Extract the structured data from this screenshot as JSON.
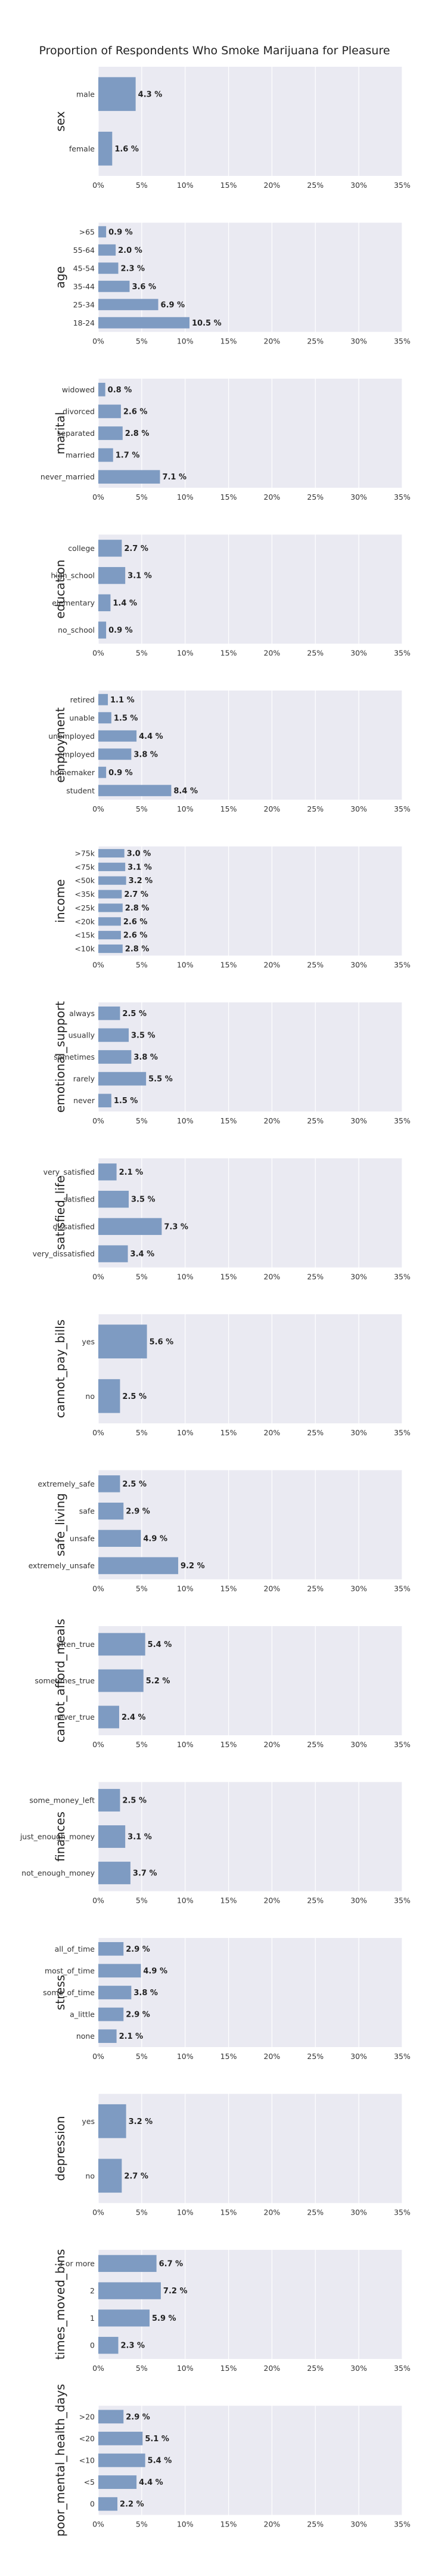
{
  "title": "Proportion of Respondents Who Smoke Marijuana for Pleasure",
  "chart_data": [
    {
      "type": "bar",
      "ylabel": "sex",
      "categories": [
        "male",
        "female"
      ],
      "values": [
        4.3,
        1.6
      ],
      "value_suffix": " %",
      "xlim": [
        0,
        35
      ],
      "xticks": [
        "0%",
        "5%",
        "10%",
        "15%",
        "20%",
        "25%",
        "30%",
        "35%"
      ]
    },
    {
      "type": "bar",
      "ylabel": "age",
      "categories": [
        ">65",
        "55-64",
        "45-54",
        "35-44",
        "25-34",
        "18-24"
      ],
      "values": [
        0.9,
        2.0,
        2.3,
        3.6,
        6.9,
        10.5
      ],
      "value_suffix": " %",
      "xlim": [
        0,
        35
      ],
      "xticks": [
        "0%",
        "5%",
        "10%",
        "15%",
        "20%",
        "25%",
        "30%",
        "35%"
      ]
    },
    {
      "type": "bar",
      "ylabel": "marital",
      "categories": [
        "widowed",
        "divorced",
        "separated",
        "married",
        "never_married"
      ],
      "values": [
        0.8,
        2.6,
        2.8,
        1.7,
        7.1
      ],
      "value_suffix": " %",
      "xlim": [
        0,
        35
      ],
      "xticks": [
        "0%",
        "5%",
        "10%",
        "15%",
        "20%",
        "25%",
        "30%",
        "35%"
      ]
    },
    {
      "type": "bar",
      "ylabel": "education",
      "categories": [
        "college",
        "high_school",
        "elementary",
        "no_school"
      ],
      "values": [
        2.7,
        3.1,
        1.4,
        0.9
      ],
      "value_suffix": " %",
      "xlim": [
        0,
        35
      ],
      "xticks": [
        "0%",
        "5%",
        "10%",
        "15%",
        "20%",
        "25%",
        "30%",
        "35%"
      ]
    },
    {
      "type": "bar",
      "ylabel": "employment",
      "categories": [
        "retired",
        "unable",
        "unemployed",
        "employed",
        "homemaker",
        "student"
      ],
      "values": [
        1.1,
        1.5,
        4.4,
        3.8,
        0.9,
        8.4
      ],
      "value_suffix": " %",
      "xlim": [
        0,
        35
      ],
      "xticks": [
        "0%",
        "5%",
        "10%",
        "15%",
        "20%",
        "25%",
        "30%",
        "35%"
      ]
    },
    {
      "type": "bar",
      "ylabel": "income",
      "categories": [
        ">75k",
        "<75k",
        "<50k",
        "<35k",
        "<25k",
        "<20k",
        "<15k",
        "<10k"
      ],
      "values": [
        3.0,
        3.1,
        3.2,
        2.7,
        2.8,
        2.6,
        2.6,
        2.8
      ],
      "value_suffix": " %",
      "xlim": [
        0,
        35
      ],
      "xticks": [
        "0%",
        "5%",
        "10%",
        "15%",
        "20%",
        "25%",
        "30%",
        "35%"
      ]
    },
    {
      "type": "bar",
      "ylabel": "emotional_support",
      "categories": [
        "always",
        "usually",
        "sometimes",
        "rarely",
        "never"
      ],
      "values": [
        2.5,
        3.5,
        3.8,
        5.5,
        1.5
      ],
      "value_suffix": " %",
      "xlim": [
        0,
        35
      ],
      "xticks": [
        "0%",
        "5%",
        "10%",
        "15%",
        "20%",
        "25%",
        "30%",
        "35%"
      ]
    },
    {
      "type": "bar",
      "ylabel": "satisfied_life",
      "categories": [
        "very_satisfied",
        "satisfied",
        "dissatisfied",
        "very_dissatisfied"
      ],
      "values": [
        2.1,
        3.5,
        7.3,
        3.4
      ],
      "value_suffix": " %",
      "xlim": [
        0,
        35
      ],
      "xticks": [
        "0%",
        "5%",
        "10%",
        "15%",
        "20%",
        "25%",
        "30%",
        "35%"
      ]
    },
    {
      "type": "bar",
      "ylabel": "cannot_pay_bills",
      "categories": [
        "yes",
        "no"
      ],
      "values": [
        5.6,
        2.5
      ],
      "value_suffix": " %",
      "xlim": [
        0,
        35
      ],
      "xticks": [
        "0%",
        "5%",
        "10%",
        "15%",
        "20%",
        "25%",
        "30%",
        "35%"
      ]
    },
    {
      "type": "bar",
      "ylabel": "safe_living",
      "categories": [
        "extremely_safe",
        "safe",
        "unsafe",
        "extremely_unsafe"
      ],
      "values": [
        2.5,
        2.9,
        4.9,
        9.2
      ],
      "value_suffix": " %",
      "xlim": [
        0,
        35
      ],
      "xticks": [
        "0%",
        "5%",
        "10%",
        "15%",
        "20%",
        "25%",
        "30%",
        "35%"
      ]
    },
    {
      "type": "bar",
      "ylabel": "cannot_afford_meals",
      "categories": [
        "often_true",
        "sometimes_true",
        "never_true"
      ],
      "values": [
        5.4,
        5.2,
        2.4
      ],
      "value_suffix": " %",
      "xlim": [
        0,
        35
      ],
      "xticks": [
        "0%",
        "5%",
        "10%",
        "15%",
        "20%",
        "25%",
        "30%",
        "35%"
      ]
    },
    {
      "type": "bar",
      "ylabel": "finances",
      "categories": [
        "some_money_left",
        "just_enough_money",
        "not_enough_money"
      ],
      "values": [
        2.5,
        3.1,
        3.7
      ],
      "value_suffix": " %",
      "xlim": [
        0,
        35
      ],
      "xticks": [
        "0%",
        "5%",
        "10%",
        "15%",
        "20%",
        "25%",
        "30%",
        "35%"
      ]
    },
    {
      "type": "bar",
      "ylabel": "stress",
      "categories": [
        "all_of_time",
        "most_of_time",
        "some_of_time",
        "a_little",
        "none"
      ],
      "values": [
        2.9,
        4.9,
        3.8,
        2.9,
        2.1
      ],
      "value_suffix": " %",
      "xlim": [
        0,
        35
      ],
      "xticks": [
        "0%",
        "5%",
        "10%",
        "15%",
        "20%",
        "25%",
        "30%",
        "35%"
      ]
    },
    {
      "type": "bar",
      "ylabel": "depression",
      "categories": [
        "yes",
        "no"
      ],
      "values": [
        3.2,
        2.7
      ],
      "value_suffix": " %",
      "xlim": [
        0,
        35
      ],
      "xticks": [
        "0%",
        "5%",
        "10%",
        "15%",
        "20%",
        "25%",
        "30%",
        "35%"
      ]
    },
    {
      "type": "bar",
      "ylabel": "times_moved_bins",
      "categories": [
        "3 or more",
        "2",
        "1",
        "0"
      ],
      "values": [
        6.7,
        7.2,
        5.9,
        2.3
      ],
      "value_suffix": " %",
      "xlim": [
        0,
        35
      ],
      "xticks": [
        "0%",
        "5%",
        "10%",
        "15%",
        "20%",
        "25%",
        "30%",
        "35%"
      ]
    },
    {
      "type": "bar",
      "ylabel": "poor_mental_health_days",
      "categories": [
        ">20",
        "<20",
        "<10",
        "<5",
        "0"
      ],
      "values": [
        2.9,
        5.1,
        5.4,
        4.4,
        2.2
      ],
      "value_suffix": " %",
      "xlim": [
        0,
        35
      ],
      "xticks": [
        "0%",
        "5%",
        "10%",
        "15%",
        "20%",
        "25%",
        "30%",
        "35%"
      ]
    }
  ],
  "colors": {
    "bar": "#7e9bc2",
    "panel": "#eaeaf2",
    "grid": "#ffffff",
    "text": "#222222"
  }
}
